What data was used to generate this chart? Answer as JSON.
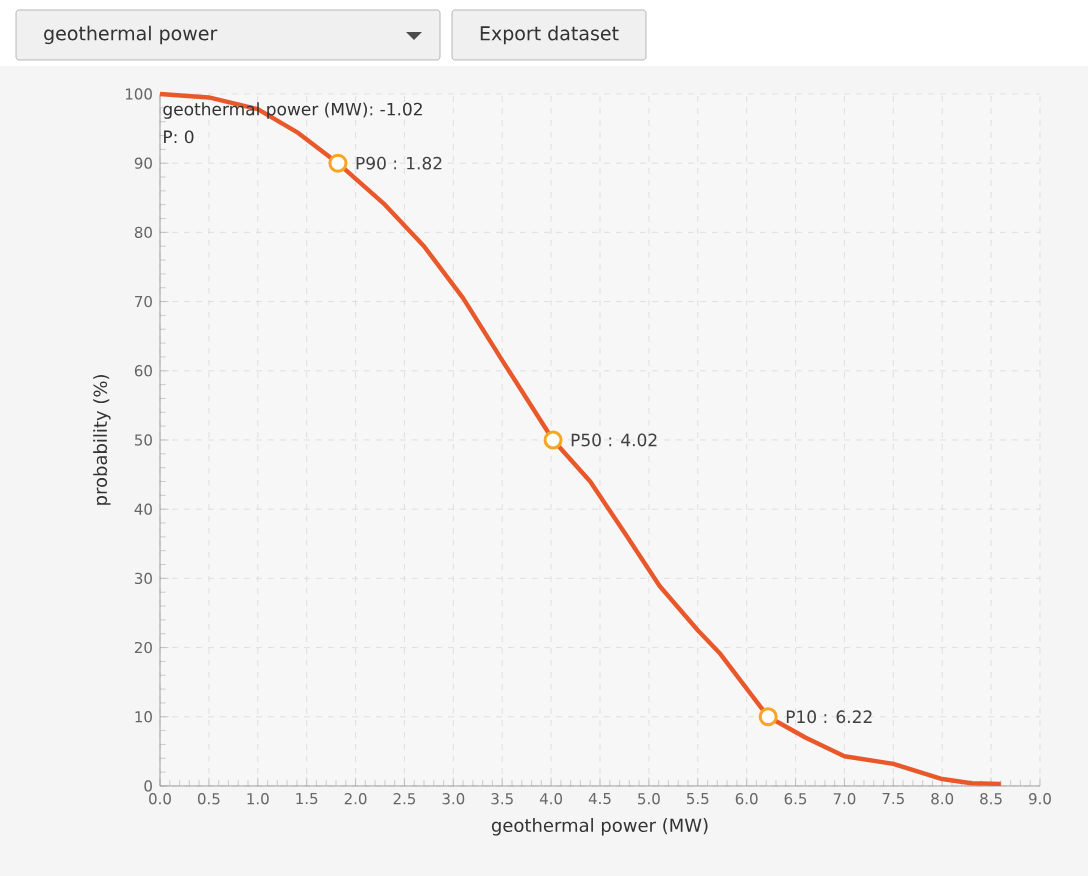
{
  "chart_data": {
    "type": "line",
    "xlabel": "geothermal power (MW)",
    "ylabel": "probability (%)",
    "xlim": [
      0,
      9
    ],
    "ylim": [
      0,
      100
    ],
    "xticks": [
      {
        "value": 0,
        "label": "0.0"
      },
      {
        "value": 0.5,
        "label": "0.5"
      },
      {
        "value": 1,
        "label": "1.0"
      },
      {
        "value": 1.5,
        "label": "1.5"
      },
      {
        "value": 2,
        "label": "2.0"
      },
      {
        "value": 2.5,
        "label": "2.5"
      },
      {
        "value": 3,
        "label": "3.0"
      },
      {
        "value": 3.5,
        "label": "3.5"
      },
      {
        "value": 4,
        "label": "4.0"
      },
      {
        "value": 4.5,
        "label": "4.5"
      },
      {
        "value": 5,
        "label": "5.0"
      },
      {
        "value": 5.5,
        "label": "5.5"
      },
      {
        "value": 6,
        "label": "6.0"
      },
      {
        "value": 6.5,
        "label": "6.5"
      },
      {
        "value": 7,
        "label": "7.0"
      },
      {
        "value": 7.5,
        "label": "7.5"
      },
      {
        "value": 8,
        "label": "8.0"
      },
      {
        "value": 8.5,
        "label": "8.5"
      },
      {
        "value": 9,
        "label": "9.0"
      }
    ],
    "yticks": [
      0,
      10,
      20,
      30,
      40,
      50,
      60,
      70,
      80,
      90,
      100
    ],
    "grid": true,
    "series": [
      {
        "color": "#e8582a",
        "marker": "none",
        "x": [
          0,
          0.5,
          1.0,
          1.4,
          1.82,
          2.3,
          2.7,
          3.1,
          3.5,
          4.02,
          4.4,
          4.76,
          5.11,
          5.5,
          5.73,
          6.22,
          6.6,
          7.0,
          7.5,
          8.0,
          8.3,
          8.6
        ],
        "values": [
          100,
          99.5,
          97.8,
          94.5,
          90,
          84,
          78,
          70.5,
          61.5,
          50,
          44,
          36.4,
          28.9,
          22.5,
          19.1,
          10,
          7,
          4.3,
          3.2,
          1,
          0.4,
          0.3
        ]
      },
      {
        "type": "scatter",
        "color": "#f5a623",
        "marker": "circle",
        "x": [
          1.82,
          4.02,
          6.22
        ],
        "values": [
          90,
          50,
          10
        ]
      }
    ],
    "annotations": [
      "geothermal power",
      "Export dataset",
      "geothermal power (MW): -1.02",
      "P: 0",
      {
        "text": "P90 : 1.82",
        "x": 1.82,
        "y": 90
      },
      {
        "text": "P50 : 4.02",
        "x": 4.02,
        "y": 50
      },
      {
        "text": "P10 : 6.22",
        "x": 6.22,
        "y": 10
      }
    ]
  }
}
